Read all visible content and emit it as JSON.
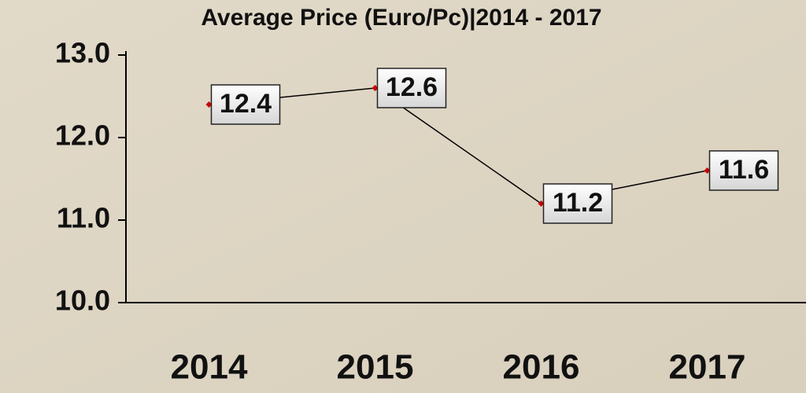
{
  "chart_data": {
    "type": "line",
    "title": "Average Price (Euro/Pc)|2014 - 2017",
    "categories": [
      "2014",
      "2015",
      "2016",
      "2017"
    ],
    "values": [
      12.4,
      12.6,
      11.2,
      11.6
    ],
    "color": "#000000",
    "marker_color": "#cc0000",
    "ylim": [
      10,
      13
    ],
    "yticks": [
      {
        "value": 10,
        "label": "10.0"
      },
      {
        "value": 11,
        "label": "11.0"
      },
      {
        "value": 12,
        "label": "12.0"
      },
      {
        "value": 13,
        "label": "13.0"
      }
    ],
    "grid": false
  }
}
